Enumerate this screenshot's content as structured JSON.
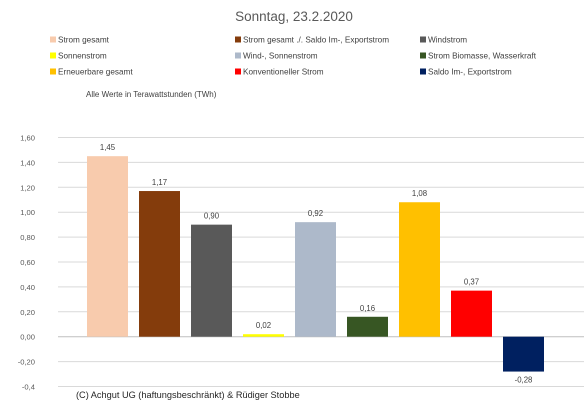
{
  "chart_data": {
    "type": "bar",
    "title": "Sonntag, 23.2.2020",
    "subtitle": "Alle Werte in Terawattstunden (TWh)",
    "categories": [
      "Strom gesamt",
      "Strom gesamt ./. Saldo Im-, Exportstrom",
      "Windstrom",
      "Sonnenstrom",
      "Wind-, Sonnenstrom",
      "Strom Biomasse, Wasserkraft",
      "Erneuerbare gesamt",
      "Konventioneller Strom",
      "Saldo Im-, Exportstrom"
    ],
    "values": [
      1.45,
      1.17,
      0.9,
      0.02,
      0.92,
      0.16,
      1.08,
      0.37,
      -0.28
    ],
    "value_labels": [
      "1,45",
      "1,17",
      "0,90",
      "0,02",
      "0,92",
      "0,16",
      "1,08",
      "0,37",
      "-0,28"
    ],
    "colors": [
      "#F8CBAD",
      "#843C0C",
      "#595959",
      "#FFFF00",
      "#ADB9CA",
      "#375623",
      "#FFC000",
      "#FF0000",
      "#002060"
    ],
    "ylim": [
      -0.4,
      1.6
    ],
    "yticks": [
      1.6,
      1.4,
      1.2,
      1.0,
      0.8,
      0.6,
      0.4,
      0.2,
      0.0,
      -0.2,
      -0.4
    ],
    "ytick_labels": [
      "1,60",
      "1,40",
      "1,20",
      "1,00",
      "0,80",
      "0,60",
      "0,40",
      "0,20",
      "0,00",
      "-0,20",
      "-0,4"
    ],
    "grid": true,
    "legend_position": "top"
  },
  "copyright": "(C) Achgut UG (haftungsbeschränkt) & Rüdiger Stobbe"
}
